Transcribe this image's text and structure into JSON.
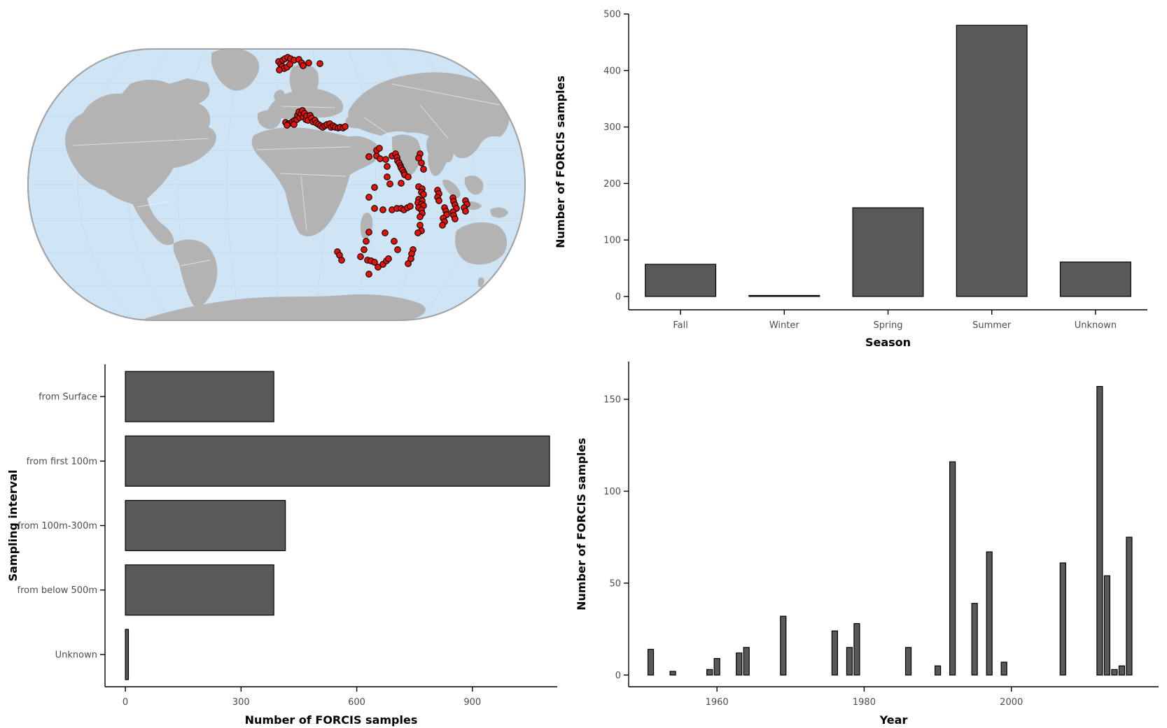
{
  "figure": {
    "description": "FORCIS dataset summary figure with four panels: sample location map, samples per season, samples per sampling interval, samples per year"
  },
  "colors": {
    "bar_fill": "#595959",
    "bar_stroke": "#000000",
    "axis_line": "#000000",
    "tick_label": "#4d4d4d",
    "axis_title": "#000000",
    "background": "#ffffff",
    "ocean": "#cfe5f6",
    "land": "#b3b3b3",
    "map_border": "#a3a3a3",
    "graticule": "#c2dcf0",
    "country_border": "#ffffff",
    "point_fill": "#e3120b",
    "point_stroke": "#000000"
  },
  "chart_data": [
    {
      "id": "map",
      "type": "scatter",
      "title": "",
      "description": "Robinson-style world map with FORCIS sample locations (red points) in the North Atlantic, Mediterranean Sea and Indian Ocean",
      "legend": "none",
      "point_radius": 4.3,
      "points_panel_xy": [
        [
          398,
          88
        ],
        [
          401,
          92
        ],
        [
          404,
          86
        ],
        [
          407,
          84
        ],
        [
          411,
          82
        ],
        [
          415,
          84
        ],
        [
          403,
          95
        ],
        [
          406,
          98
        ],
        [
          410,
          96
        ],
        [
          399,
          100
        ],
        [
          414,
          92
        ],
        [
          420,
          86
        ],
        [
          427,
          85
        ],
        [
          431,
          90
        ],
        [
          433,
          94
        ],
        [
          441,
          90
        ],
        [
          457,
          91
        ],
        [
          408,
          175
        ],
        [
          412,
          177
        ],
        [
          415,
          176
        ],
        [
          418,
          174
        ],
        [
          421,
          172
        ],
        [
          424,
          171
        ],
        [
          425,
          165
        ],
        [
          427,
          160
        ],
        [
          428,
          168
        ],
        [
          430,
          163
        ],
        [
          432,
          158
        ],
        [
          433,
          167
        ],
        [
          435,
          162
        ],
        [
          437,
          171
        ],
        [
          438,
          166
        ],
        [
          440,
          172
        ],
        [
          443,
          165
        ],
        [
          445,
          169
        ],
        [
          447,
          174
        ],
        [
          450,
          172
        ],
        [
          452,
          176
        ],
        [
          455,
          178
        ],
        [
          458,
          180
        ],
        [
          461,
          182
        ],
        [
          464,
          180
        ],
        [
          467,
          178
        ],
        [
          471,
          177
        ],
        [
          473,
          182
        ],
        [
          476,
          180
        ],
        [
          479,
          182
        ],
        [
          483,
          183
        ],
        [
          486,
          182
        ],
        [
          490,
          183
        ],
        [
          493,
          181
        ],
        [
          410,
          179
        ],
        [
          420,
          178
        ],
        [
          527,
          224
        ],
        [
          538,
          215
        ],
        [
          542,
          212
        ],
        [
          538,
          223
        ],
        [
          543,
          227
        ],
        [
          551,
          228
        ],
        [
          553,
          238
        ],
        [
          560,
          223
        ],
        [
          565,
          220
        ],
        [
          567,
          225
        ],
        [
          568,
          230
        ],
        [
          570,
          233
        ],
        [
          572,
          237
        ],
        [
          573,
          240
        ],
        [
          575,
          243
        ],
        [
          577,
          247
        ],
        [
          578,
          250
        ],
        [
          583,
          253
        ],
        [
          553,
          253
        ],
        [
          557,
          263
        ],
        [
          573,
          262
        ],
        [
          535,
          268
        ],
        [
          527,
          282
        ],
        [
          600,
          220
        ],
        [
          598,
          226
        ],
        [
          602,
          233
        ],
        [
          605,
          242
        ],
        [
          598,
          267
        ],
        [
          603,
          270
        ],
        [
          602,
          275
        ],
        [
          605,
          278
        ],
        [
          598,
          285
        ],
        [
          603,
          287
        ],
        [
          597,
          290
        ],
        [
          602,
          292
        ],
        [
          605,
          294
        ],
        [
          598,
          297
        ],
        [
          602,
          300
        ],
        [
          603,
          305
        ],
        [
          600,
          310
        ],
        [
          535,
          298
        ],
        [
          547,
          300
        ],
        [
          560,
          300
        ],
        [
          567,
          298
        ],
        [
          573,
          298
        ],
        [
          577,
          300
        ],
        [
          582,
          297
        ],
        [
          586,
          295
        ],
        [
          625,
          272
        ],
        [
          627,
          277
        ],
        [
          625,
          282
        ],
        [
          627,
          287
        ],
        [
          635,
          297
        ],
        [
          637,
          302
        ],
        [
          638,
          307
        ],
        [
          633,
          312
        ],
        [
          635,
          317
        ],
        [
          632,
          322
        ],
        [
          647,
          283
        ],
        [
          648,
          288
        ],
        [
          650,
          293
        ],
        [
          652,
          298
        ],
        [
          647,
          303
        ],
        [
          648,
          308
        ],
        [
          650,
          313
        ],
        [
          665,
          287
        ],
        [
          667,
          292
        ],
        [
          663,
          297
        ],
        [
          665,
          302
        ],
        [
          600,
          322
        ],
        [
          602,
          330
        ],
        [
          597,
          333
        ],
        [
          527,
          332
        ],
        [
          550,
          333
        ],
        [
          523,
          345
        ],
        [
          563,
          345
        ],
        [
          520,
          357
        ],
        [
          568,
          357
        ],
        [
          515,
          367
        ],
        [
          482,
          360
        ],
        [
          485,
          365
        ],
        [
          488,
          372
        ],
        [
          525,
          372
        ],
        [
          530,
          373
        ],
        [
          535,
          375
        ],
        [
          540,
          382
        ],
        [
          547,
          378
        ],
        [
          552,
          373
        ],
        [
          555,
          370
        ],
        [
          590,
          357
        ],
        [
          588,
          363
        ],
        [
          587,
          370
        ],
        [
          583,
          377
        ],
        [
          527,
          392
        ]
      ]
    },
    {
      "id": "season",
      "type": "bar",
      "categories": [
        "Fall",
        "Winter",
        "Spring",
        "Summer",
        "Unknown"
      ],
      "values": [
        57,
        1,
        157,
        480,
        61
      ],
      "title": "",
      "xlabel": "Season",
      "ylabel": "Number of FORCIS samples",
      "ylim": [
        0,
        500
      ],
      "yticks": [
        0,
        100,
        200,
        300,
        400,
        500
      ],
      "grid": "off",
      "legend": "none"
    },
    {
      "id": "interval",
      "type": "bar-horizontal",
      "categories": [
        "from Surface",
        "from first 100m",
        "from 100m-300m",
        "from below 500m",
        "Unknown"
      ],
      "values": [
        385,
        1100,
        415,
        385,
        8
      ],
      "title": "",
      "xlabel": "Number of FORCIS samples",
      "ylabel": "Sampling interval",
      "xlim": [
        0,
        1120
      ],
      "xticks": [
        0,
        300,
        600,
        900
      ],
      "grid": "off",
      "legend": "none"
    },
    {
      "id": "year",
      "type": "bar",
      "x": [
        1951,
        1954,
        1959,
        1960,
        1963,
        1964,
        1969,
        1976,
        1978,
        1979,
        1986,
        1990,
        1992,
        1995,
        1997,
        1999,
        2007,
        2012,
        2013,
        2014,
        2015,
        2016
      ],
      "values": [
        14,
        2,
        3,
        9,
        12,
        15,
        32,
        24,
        15,
        28,
        15,
        5,
        116,
        39,
        67,
        7,
        61,
        157,
        54,
        3,
        5,
        75
      ],
      "title": "",
      "xlabel": "Year",
      "ylabel": "Number of FORCIS samples",
      "xlim": [
        1948,
        2020
      ],
      "ylim": [
        0,
        160
      ],
      "xticks": [
        1960,
        1980,
        2000
      ],
      "yticks": [
        0,
        50,
        100,
        150
      ],
      "grid": "off",
      "legend": "none"
    }
  ],
  "panels": {
    "map": {
      "name": "sample-location-map"
    },
    "season": {
      "name": "samples-per-season-chart"
    },
    "interval": {
      "name": "samples-per-depth-interval-chart"
    },
    "year": {
      "name": "samples-per-year-chart"
    }
  }
}
